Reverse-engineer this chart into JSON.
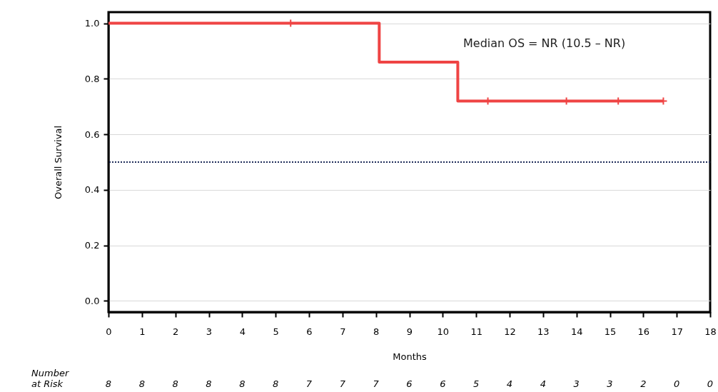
{
  "chart_data": {
    "type": "step",
    "xlabel": "Months",
    "ylabel": "Overall Survival",
    "xlim": [
      0,
      18
    ],
    "xticks": [
      0,
      1,
      2,
      3,
      4,
      5,
      6,
      7,
      8,
      9,
      10,
      11,
      12,
      13,
      14,
      15,
      16,
      17,
      18
    ],
    "ylim": [
      -0.04,
      1.04
    ],
    "yticks": [
      {
        "value": 0,
        "label": "0.0"
      },
      {
        "value": 0.2,
        "label": "0.2"
      },
      {
        "value": 0.4,
        "label": "0.4"
      },
      {
        "value": 0.6,
        "label": "0.6"
      },
      {
        "value": 0.8,
        "label": "0.8"
      },
      {
        "value": 1,
        "label": "1.0"
      }
    ],
    "grid": "y",
    "series": [
      {
        "color": "#ef4444",
        "line_style": "solid",
        "marker": "none",
        "x": [
          0,
          8.1,
          10.45,
          16.6
        ],
        "values": [
          1.0,
          0.86,
          0.72,
          0.72
        ]
      },
      {
        "type": "scatter",
        "color": "#ef4444",
        "marker": "cross",
        "x": [
          5.45,
          11.35,
          13.7,
          15.25,
          16.6
        ],
        "values": [
          1.0,
          0.72,
          0.72,
          0.72,
          0.72
        ]
      }
    ],
    "ref_lines": [
      {
        "axis": "y",
        "value": 0.5,
        "color": "#1f2d5a",
        "line_style": "dotted"
      }
    ],
    "annotations": [
      "Median OS = NR (10.5 – NR)",
      "Number\nat Risk",
      "8",
      "8",
      "8",
      "8",
      "8",
      "8",
      "7",
      "7",
      "7",
      "6",
      "6",
      "5",
      "4",
      "4",
      "3",
      "3",
      "2",
      "0",
      "0"
    ]
  }
}
